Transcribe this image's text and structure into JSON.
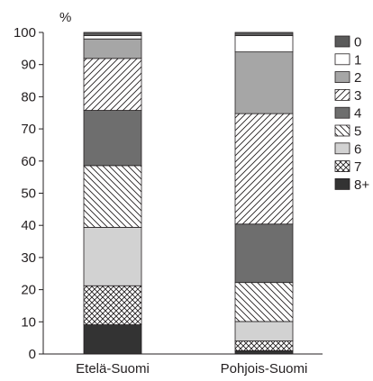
{
  "chart_data": {
    "type": "bar",
    "stacked": true,
    "ylabel": "%",
    "ylim": [
      0,
      100
    ],
    "yticks": [
      0,
      10,
      20,
      30,
      40,
      50,
      60,
      70,
      80,
      90,
      100
    ],
    "grid": false,
    "legend_position": "right",
    "categories": [
      "Etelä-Suomi",
      "Pohjois-Suomi"
    ],
    "series": [
      {
        "name": "0",
        "pattern": "solid-dark",
        "color": "#5a5a5a",
        "values": [
          1,
          1
        ]
      },
      {
        "name": "1",
        "pattern": "white",
        "color": "#ffffff",
        "values": [
          1,
          5
        ]
      },
      {
        "name": "2",
        "pattern": "solid-mid",
        "color": "#a6a6a6",
        "values": [
          6,
          19
        ]
      },
      {
        "name": "3",
        "pattern": "diagonal-up",
        "color": "#ffffff",
        "values": [
          16,
          34
        ]
      },
      {
        "name": "4",
        "pattern": "solid-dark",
        "color": "#6e6e6e",
        "values": [
          17,
          18
        ]
      },
      {
        "name": "5",
        "pattern": "diagonal-down",
        "color": "#ffffff",
        "values": [
          19,
          12
        ]
      },
      {
        "name": "6",
        "pattern": "solid-light",
        "color": "#d2d2d2",
        "values": [
          18,
          6
        ]
      },
      {
        "name": "7",
        "pattern": "crosshatch",
        "color": "#ffffff",
        "values": [
          12,
          3
        ]
      },
      {
        "name": "8+",
        "pattern": "solid-black",
        "color": "#333333",
        "values": [
          9,
          1
        ]
      }
    ]
  }
}
